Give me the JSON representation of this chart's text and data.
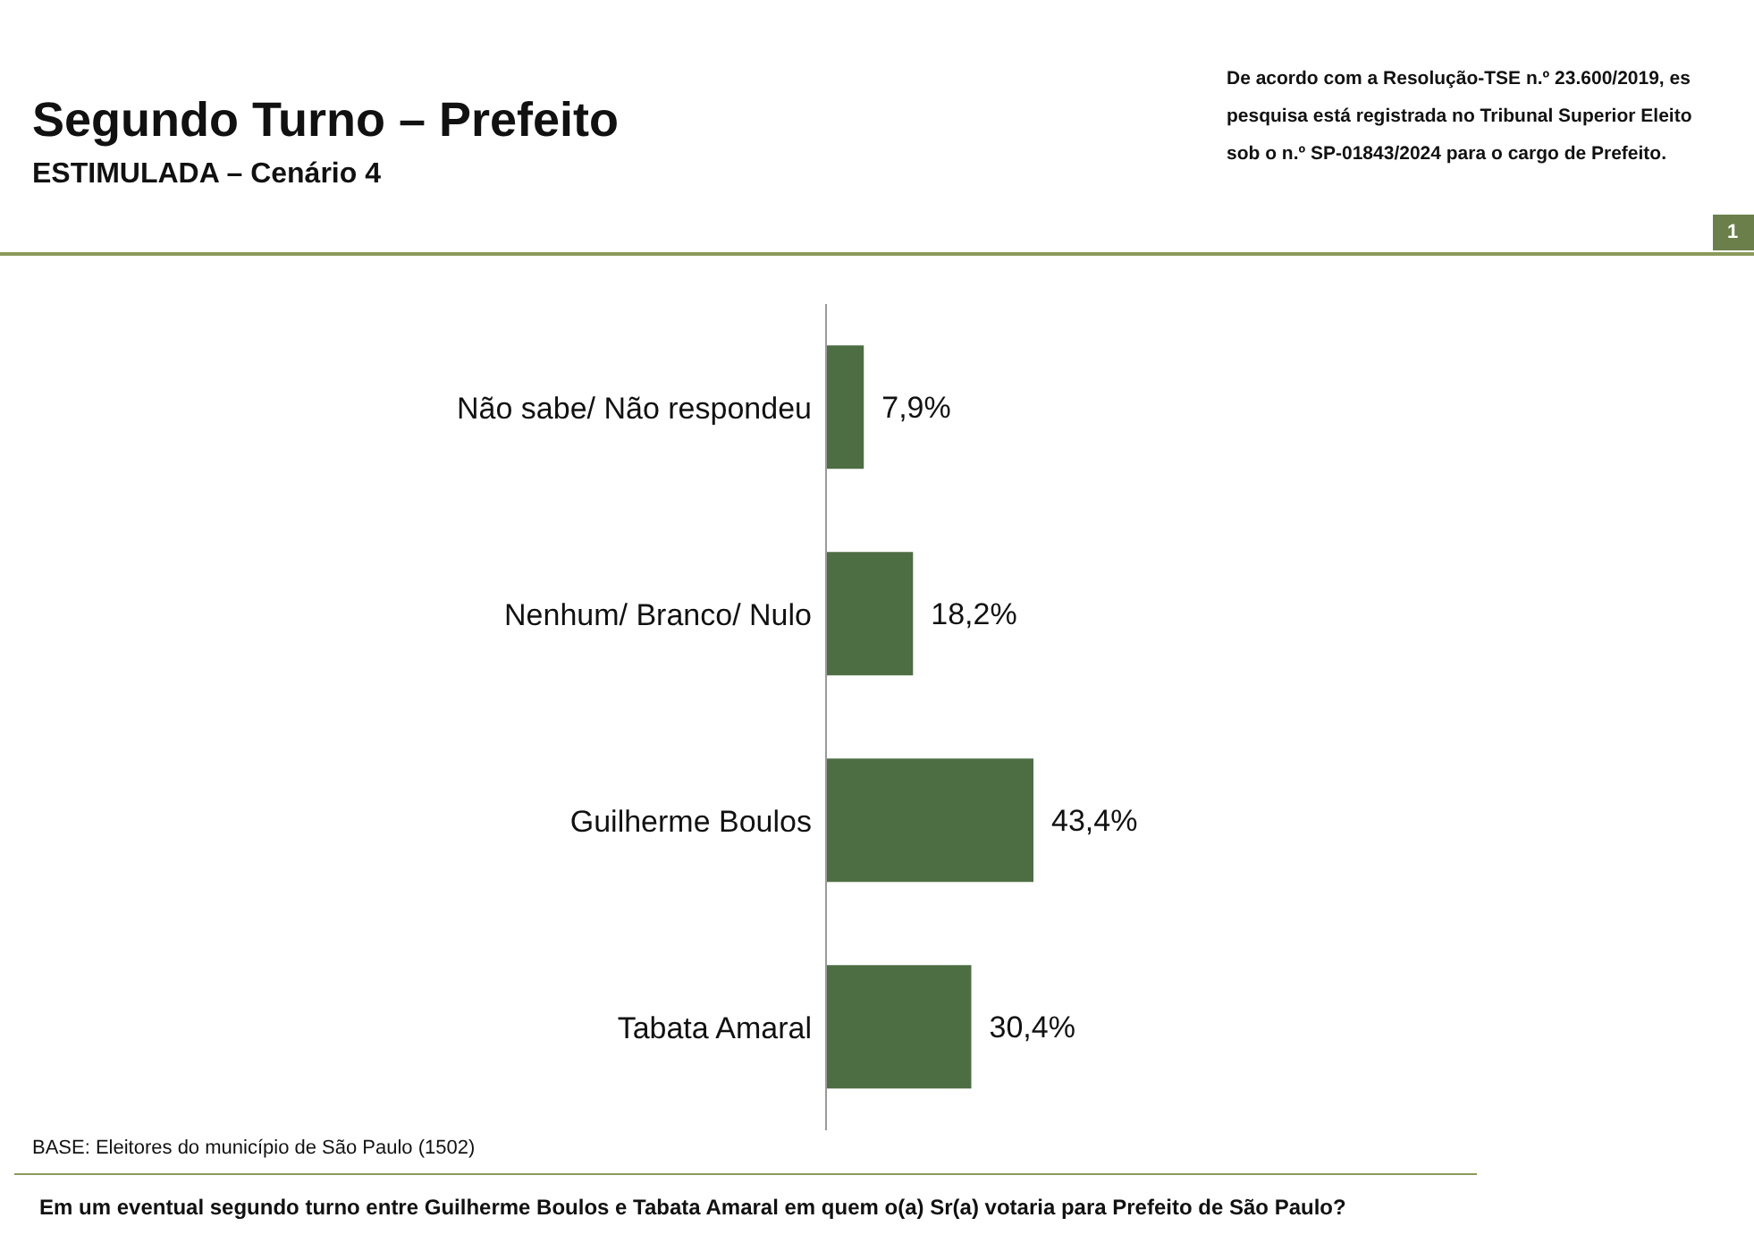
{
  "chart_data": {
    "type": "bar",
    "orientation": "horizontal",
    "title": "Segundo Turno – Prefeito",
    "subtitle": "ESTIMULADA – Cenário 4",
    "categories": [
      "Não sabe/ Não respondeu",
      "Nenhum/ Branco/ Nulo",
      "Guilherme Boulos",
      "Tabata Amaral"
    ],
    "values": [
      7.9,
      18.2,
      43.4,
      30.4
    ],
    "value_labels": [
      "7,9%",
      "18,2%",
      "43,4%",
      "30,4%"
    ],
    "color": "#4d6e43",
    "grid": false,
    "legend": false,
    "annotations": [
      "De acordo com a Resolução-TSE n.º 23.600/2019, es",
      "pesquisa está registrada no Tribunal Superior Eleito",
      "sob o n.º SP-01843/2024 para o cargo de Prefeito.",
      "1",
      "BASE: Eleitores do município de São Paulo (1502)",
      "Em um eventual segundo turno entre Guilherme Boulos e Tabata Amaral em quem o(a) Sr(a) votaria para Prefeito de São Paulo?"
    ]
  }
}
